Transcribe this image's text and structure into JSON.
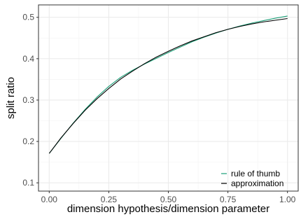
{
  "chart_data": {
    "type": "line",
    "xlabel": "dimension hypothesis/dimension parameter",
    "ylabel": "split ratio",
    "xlim": [
      -0.045,
      1.045
    ],
    "ylim": [
      0.08,
      0.53
    ],
    "x_ticks": [
      0.0,
      0.25,
      0.5,
      0.75,
      1.0
    ],
    "x_tick_labels": [
      "0.00",
      "0.25",
      "0.50",
      "0.75",
      "1.00"
    ],
    "y_ticks": [
      0.1,
      0.2,
      0.3,
      0.4,
      0.5
    ],
    "y_tick_labels": [
      "0.1",
      "0.2",
      "0.3",
      "0.4",
      "0.5"
    ],
    "grid": true,
    "legend_position": "bottom-right",
    "series": [
      {
        "name": "rule of thumb",
        "color": "#1b9e77",
        "x": [
          0.0,
          0.05,
          0.1,
          0.15,
          0.2,
          0.25,
          0.3,
          0.35,
          0.4,
          0.45,
          0.5,
          0.55,
          0.6,
          0.65,
          0.7,
          0.75,
          0.8,
          0.85,
          0.9,
          0.95,
          1.0
        ],
        "y": [
          0.171,
          0.208,
          0.244,
          0.277,
          0.307,
          0.333,
          0.355,
          0.372,
          0.387,
          0.401,
          0.415,
          0.428,
          0.441,
          0.452,
          0.462,
          0.471,
          0.479,
          0.486,
          0.492,
          0.498,
          0.503
        ]
      },
      {
        "name": "approximation",
        "color": "#000000",
        "x": [
          0.0,
          0.05,
          0.1,
          0.15,
          0.2,
          0.25,
          0.3,
          0.35,
          0.4,
          0.45,
          0.5,
          0.55,
          0.6,
          0.65,
          0.7,
          0.75,
          0.8,
          0.85,
          0.9,
          0.95,
          1.0
        ],
        "y": [
          0.171,
          0.209,
          0.243,
          0.275,
          0.303,
          0.328,
          0.351,
          0.37,
          0.388,
          0.404,
          0.418,
          0.431,
          0.443,
          0.453,
          0.463,
          0.471,
          0.478,
          0.484,
          0.489,
          0.493,
          0.497
        ]
      }
    ]
  }
}
